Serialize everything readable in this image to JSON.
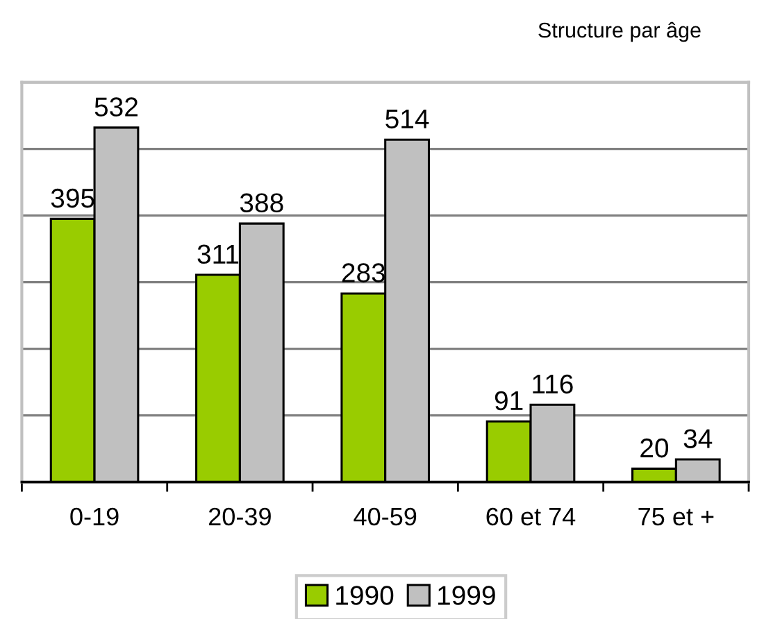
{
  "chart_data": {
    "type": "bar",
    "title": "Structure par âge",
    "categories": [
      "0-19",
      "20-39",
      "40-59",
      "60 et 74",
      "75 et +"
    ],
    "series": [
      {
        "name": "1990",
        "color": "#99cc00",
        "values": [
          395,
          311,
          283,
          91,
          20
        ]
      },
      {
        "name": "1999",
        "color": "#c0c0c0",
        "values": [
          532,
          388,
          514,
          116,
          34
        ]
      }
    ],
    "ylim": [
      0,
      600
    ],
    "yticks": [
      {
        "value": 0,
        "label": null
      },
      {
        "value": 100,
        "label": null
      },
      {
        "value": 200,
        "label": null
      },
      {
        "value": 300,
        "label": null
      },
      {
        "value": 400,
        "label": null
      },
      {
        "value": 500,
        "label": null
      },
      {
        "value": 600,
        "label": null
      }
    ],
    "tick_labels": "x",
    "grid": "y",
    "legend": "bottom",
    "data_labels": true
  }
}
